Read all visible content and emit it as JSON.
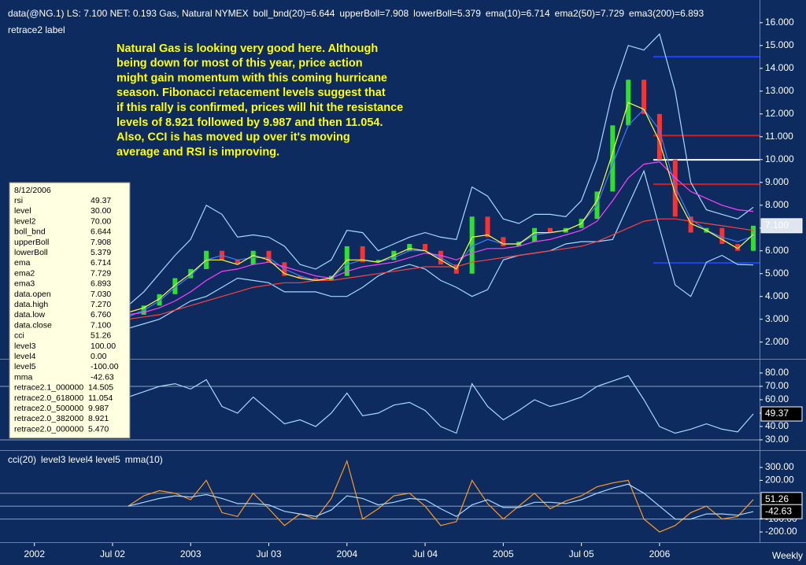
{
  "header": [
    {
      "text": "data(@NG.1) LS: 7.100  NET: 0.193   Gas, Natural NYMEX",
      "color": "#ffffff"
    },
    {
      "text": "boll_bnd(20)=6.644",
      "color": "#3f7bff"
    },
    {
      "text": "upperBoll=7.908",
      "color": "#a8d8ff"
    },
    {
      "text": "lowerBoll=5.379",
      "color": "#a8d8ff"
    },
    {
      "text": "ema(10)=6.714",
      "color": "#ffff40"
    },
    {
      "text": "ema2(50)=7.729",
      "color": "#ff40ff"
    },
    {
      "text": "ema3(200)=6.893",
      "color": "#ff4040"
    }
  ],
  "subheader": "retrace2 label",
  "annotation": [
    "Natural Gas is looking very good here. Although",
    "being down for most of this year, price action",
    "might gain momentum with this coming hurricane",
    "season. Fibonacci retacement levels suggest that",
    "if this rally is confirmed, prices will hit the resistance",
    "levels of 8.921 followed by 9.987 and then 11.054.",
    "Also, CCI is has moved up over it's moving",
    "average and RSI is improving."
  ],
  "data_window": {
    "date": "8/12/2006",
    "rows": [
      [
        "rsi",
        "49.37"
      ],
      [
        "level",
        "30.00"
      ],
      [
        "level2",
        "70.00"
      ],
      [
        "boll_bnd",
        "6.644"
      ],
      [
        "upperBoll",
        "7.908"
      ],
      [
        "lowerBoll",
        "5.379"
      ],
      [
        "ema",
        "6.714"
      ],
      [
        "ema2",
        "7.729"
      ],
      [
        "ema3",
        "6.893"
      ],
      [
        "data.open",
        "7.030"
      ],
      [
        "data.high",
        "7.270"
      ],
      [
        "data.low",
        "6.760"
      ],
      [
        "data.close",
        "7.100"
      ],
      [
        "cci",
        "51.26"
      ],
      [
        "level3",
        "100.00"
      ],
      [
        "level4",
        "0.00"
      ],
      [
        "level5",
        "-100.00"
      ],
      [
        "mma",
        "-42.63"
      ],
      [
        "retrace2.1_000000",
        "14.505"
      ],
      [
        "retrace2.0_618000",
        "11.054"
      ],
      [
        "retrace2.0_500000",
        "9.987"
      ],
      [
        "retrace2.0_382000",
        "8.921"
      ],
      [
        "retrace2.0_000000",
        "5.470"
      ]
    ]
  },
  "x_axis_unit": "Weekly",
  "chart_data": [
    {
      "type": "line",
      "x": [
        2002.6,
        2002.7,
        2002.8,
        2002.9,
        2003.0,
        2003.1,
        2003.2,
        2003.3,
        2003.4,
        2003.5,
        2003.6,
        2003.7,
        2003.8,
        2003.9,
        2004.0,
        2004.1,
        2004.2,
        2004.3,
        2004.4,
        2004.5,
        2004.6,
        2004.7,
        2004.8,
        2004.9,
        2005.0,
        2005.1,
        2005.2,
        2005.3,
        2005.4,
        2005.5,
        2005.6,
        2005.7,
        2005.8,
        2005.9,
        2006.0,
        2006.1,
        2006.2,
        2006.3,
        2006.4,
        2006.5,
        2006.6
      ],
      "xlim": [
        2001.78,
        2006.64
      ],
      "xticks": [
        {
          "value": 2002,
          "label": "2002"
        },
        {
          "value": 2002.5,
          "label": "Jul 02"
        },
        {
          "value": 2003,
          "label": "2003"
        },
        {
          "value": 2003.5,
          "label": "Jul 03"
        },
        {
          "value": 2004,
          "label": "2004"
        },
        {
          "value": 2004.5,
          "label": "Jul 04"
        },
        {
          "value": 2005,
          "label": "2005"
        },
        {
          "value": 2005.5,
          "label": "Jul 05"
        },
        {
          "value": 2006,
          "label": "2006"
        }
      ],
      "ylim": [
        1.3,
        16.65
      ],
      "yticks": [
        {
          "value": 2,
          "label": "2.000"
        },
        {
          "value": 3,
          "label": "3.000"
        },
        {
          "value": 4,
          "label": "4.000"
        },
        {
          "value": 5,
          "label": "5.000"
        },
        {
          "value": 6,
          "label": "6.000"
        },
        {
          "value": 7,
          "label": "7.000"
        },
        {
          "value": 8,
          "label": "8.000"
        },
        {
          "value": 9,
          "label": "9.000"
        },
        {
          "value": 10,
          "label": "10.000"
        },
        {
          "value": 11,
          "label": "11.000"
        },
        {
          "value": 12,
          "label": "12.000"
        },
        {
          "value": 13,
          "label": "13.000"
        },
        {
          "value": 14,
          "label": "14.000"
        },
        {
          "value": 15,
          "label": "15.000"
        },
        {
          "value": 16,
          "label": "16.000"
        }
      ],
      "candles": {
        "up_color": "#30e030",
        "down_color": "#ff3030",
        "values": [
          3.2,
          3.6,
          4.1,
          4.8,
          5.2,
          6.0,
          5.6,
          5.4,
          6.0,
          5.5,
          4.9,
          4.8,
          4.7,
          4.9,
          6.2,
          5.5,
          5.6,
          6.0,
          6.3,
          6.0,
          5.4,
          5.0,
          7.5,
          6.6,
          6.2,
          6.4,
          7.0,
          6.8,
          7.0,
          7.4,
          8.6,
          11.5,
          13.5,
          12.0,
          10.0,
          7.5,
          6.8,
          7.0,
          6.3,
          6.0,
          7.1
        ]
      },
      "series": [
        {
          "color": "#a8d8ff",
          "values": [
            3.6,
            4.2,
            5.0,
            5.8,
            6.5,
            8.0,
            7.6,
            6.6,
            6.7,
            6.6,
            6.2,
            5.4,
            5.2,
            5.6,
            6.9,
            6.8,
            6.0,
            6.3,
            6.6,
            6.8,
            6.6,
            6.5,
            8.8,
            8.4,
            7.4,
            7.2,
            7.6,
            7.6,
            7.5,
            8.2,
            10.0,
            13.0,
            15.0,
            14.8,
            15.5,
            13.0,
            9.0,
            7.8,
            7.6,
            7.4,
            7.908
          ]
        },
        {
          "color": "#a8d8ff",
          "values": [
            2.6,
            2.8,
            3.0,
            3.4,
            3.8,
            4.0,
            4.4,
            4.8,
            4.7,
            4.6,
            4.2,
            4.2,
            4.2,
            4.0,
            4.0,
            4.4,
            4.9,
            5.2,
            5.4,
            5.2,
            4.7,
            4.4,
            4.0,
            4.3,
            5.6,
            5.8,
            5.9,
            6.0,
            6.3,
            6.4,
            6.4,
            6.5,
            8.0,
            9.5,
            7.0,
            4.5,
            4.0,
            5.5,
            5.8,
            5.4,
            5.379
          ]
        },
        {
          "color": "#3f7bff",
          "values": [
            3.1,
            3.4,
            3.8,
            4.4,
            4.9,
            5.6,
            5.8,
            5.6,
            5.7,
            5.7,
            5.2,
            4.9,
            4.7,
            4.8,
            5.4,
            5.6,
            5.5,
            5.7,
            6.0,
            6.0,
            5.7,
            5.3,
            6.2,
            6.5,
            6.3,
            6.3,
            6.7,
            6.8,
            6.9,
            7.2,
            8.0,
            9.8,
            11.5,
            12.2,
            11.3,
            8.8,
            7.4,
            6.9,
            6.6,
            6.4,
            6.644
          ]
        },
        {
          "color": "#ff4040",
          "values": [
            3.0,
            3.1,
            3.2,
            3.4,
            3.6,
            3.8,
            4.0,
            4.2,
            4.4,
            4.5,
            4.6,
            4.6,
            4.7,
            4.7,
            4.8,
            4.9,
            5.0,
            5.1,
            5.2,
            5.3,
            5.3,
            5.3,
            5.5,
            5.6,
            5.7,
            5.8,
            5.9,
            6.0,
            6.1,
            6.2,
            6.4,
            6.7,
            7.0,
            7.3,
            7.4,
            7.4,
            7.3,
            7.2,
            7.1,
            7.0,
            6.893
          ]
        },
        {
          "color": "#ff40ff",
          "values": [
            3.2,
            3.3,
            3.5,
            3.8,
            4.2,
            4.7,
            5.1,
            5.2,
            5.4,
            5.5,
            5.3,
            5.1,
            4.9,
            4.8,
            5.1,
            5.3,
            5.4,
            5.5,
            5.7,
            5.9,
            5.8,
            5.6,
            5.9,
            6.1,
            6.1,
            6.2,
            6.4,
            6.5,
            6.7,
            6.9,
            7.3,
            8.2,
            9.2,
            9.8,
            9.9,
            9.2,
            8.6,
            8.3,
            8.0,
            7.8,
            7.729
          ]
        },
        {
          "color": "#ffff40",
          "values": [
            3.3,
            3.5,
            3.9,
            4.5,
            5.0,
            5.6,
            5.6,
            5.4,
            5.8,
            5.6,
            5.0,
            4.8,
            4.7,
            4.8,
            5.6,
            5.6,
            5.5,
            5.8,
            6.1,
            6.0,
            5.6,
            5.2,
            6.6,
            6.7,
            6.3,
            6.3,
            6.8,
            6.8,
            6.9,
            7.2,
            8.2,
            10.3,
            12.5,
            12.2,
            10.8,
            8.5,
            7.2,
            6.9,
            6.5,
            6.1,
            6.714
          ]
        }
      ],
      "levels": [
        14.505,
        11.054,
        9.987,
        8.921,
        5.47
      ],
      "level_colors": [
        "#2040ff",
        "#d02020",
        "#ffffff",
        "#d02020",
        "#2040ff"
      ]
    },
    {
      "type": "line",
      "ylim": [
        23.5,
        89.4
      ],
      "yticks": [
        {
          "value": 30,
          "label": "30.00"
        },
        {
          "value": 40,
          "label": "40.00"
        },
        {
          "value": 50,
          "label": "50.00"
        },
        {
          "value": 60,
          "label": "60.00"
        },
        {
          "value": 70,
          "label": "70.00"
        },
        {
          "value": 80,
          "label": "80.00"
        }
      ],
      "levels": [
        30,
        70
      ],
      "series": [
        {
          "color": "#a8d8ff",
          "values": [
            62,
            66,
            70,
            72,
            68,
            75,
            55,
            50,
            62,
            52,
            42,
            45,
            40,
            50,
            65,
            48,
            50,
            56,
            58,
            52,
            40,
            35,
            72,
            55,
            45,
            52,
            60,
            55,
            58,
            62,
            70,
            74,
            78,
            60,
            40,
            35,
            38,
            42,
            38,
            36,
            49.37
          ]
        }
      ]
    },
    {
      "type": "line",
      "ylim": [
        -273,
        416
      ],
      "yticks": [
        {
          "value": 300,
          "label": "300.00"
        },
        {
          "value": 200,
          "label": "200.00"
        },
        {
          "value": -100,
          "label": "-100.00"
        },
        {
          "value": -200,
          "label": "-200.00"
        }
      ],
      "levels": [
        100,
        0,
        -100
      ],
      "legend": [
        {
          "text": "cci(20)",
          "color": "#ff9a20"
        },
        {
          "text": "level3 level4 level5",
          "color": "#b0b0b0"
        },
        {
          "text": "mma(10)",
          "color": "#a8d8ff"
        }
      ],
      "series": [
        {
          "color": "#ff9a20",
          "values": [
            0,
            80,
            120,
            100,
            50,
            200,
            -50,
            -80,
            100,
            -20,
            -150,
            -60,
            -100,
            60,
            350,
            -100,
            -20,
            80,
            100,
            0,
            -150,
            -120,
            200,
            20,
            -100,
            0,
            100,
            -20,
            40,
            80,
            150,
            180,
            200,
            -100,
            -200,
            -150,
            -50,
            0,
            -100,
            -80,
            51.26
          ]
        },
        {
          "color": "#a8d8ff",
          "values": [
            0,
            30,
            60,
            80,
            70,
            90,
            60,
            20,
            20,
            10,
            -40,
            -60,
            -80,
            -30,
            80,
            60,
            10,
            30,
            60,
            50,
            -20,
            -80,
            10,
            50,
            -10,
            -10,
            30,
            30,
            20,
            50,
            100,
            140,
            170,
            100,
            0,
            -100,
            -100,
            -60,
            -60,
            -70,
            -42.63
          ]
        }
      ]
    }
  ]
}
